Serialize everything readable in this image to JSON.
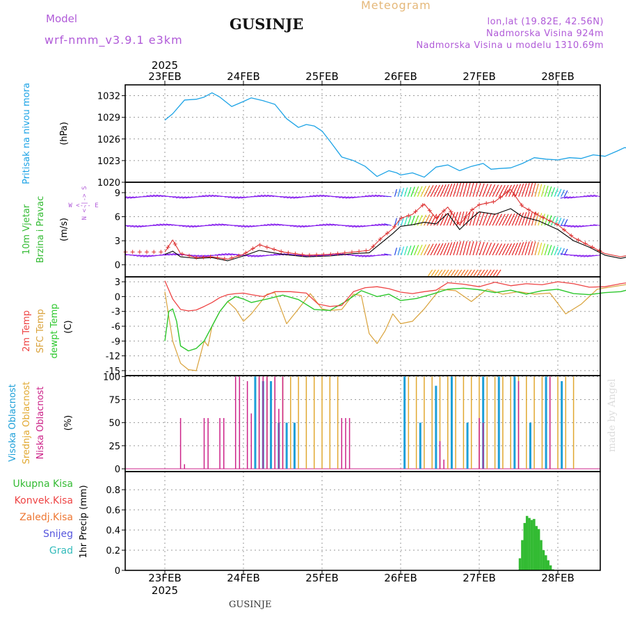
{
  "header": {
    "model_label": "Model",
    "model_name": "wrf-nmm_v3.9.1  e3km",
    "station": "GUSINJE",
    "product": "Meteogram",
    "lonlat": "lon,lat (19.82E, 42.56N)",
    "elevation": "Nadmorska Visina 924m",
    "model_elevation": "Nadmorska Visina u modelu 1310.69m",
    "footer_station": "GUSINJE",
    "credit": "made by Angel"
  },
  "colors": {
    "pressure": "#1ca3e6",
    "t2m": "#ee4444",
    "sfc": "#d9a23a",
    "dew": "#2cc72c",
    "precip": "#33bb33",
    "high_cloud": "#1c9fd8",
    "mid_cloud": "#e1a830",
    "low_cloud": "#cc2288",
    "gust": "#dd3333"
  },
  "chart_data": [
    {
      "type": "line",
      "name": "pressure",
      "ylabel": "Pritisak na nivou mora",
      "unit": "(hPa)",
      "ylim": [
        1020,
        1033.5
      ],
      "yticks": [
        1020,
        1023,
        1026,
        1029,
        1032
      ],
      "series": [
        {
          "name": "MSLP",
          "x": [
            0,
            0.1,
            0.25,
            0.4,
            0.5,
            0.6,
            0.7,
            0.85,
            1.0,
            1.1,
            1.25,
            1.4,
            1.55,
            1.7,
            1.8,
            1.9,
            2.0,
            2.1,
            2.25,
            2.4,
            2.55,
            2.7,
            2.85,
            2.95,
            3.0,
            3.15,
            3.3,
            3.45,
            3.6,
            3.75,
            3.9,
            4.05,
            4.15,
            4.25,
            4.4,
            4.55,
            4.7,
            4.85,
            5.0,
            5.15,
            5.3,
            5.45,
            5.6,
            5.75,
            5.85,
            5.95,
            6.0
          ],
          "values": [
            1028.6,
            1029.5,
            1031.4,
            1031.5,
            1031.8,
            1032.4,
            1031.8,
            1030.5,
            1031.2,
            1031.7,
            1031.3,
            1030.8,
            1028.8,
            1027.6,
            1028.0,
            1027.8,
            1027.1,
            1025.7,
            1023.5,
            1023.0,
            1022.2,
            1020.8,
            1021.6,
            1021.3,
            1021.0,
            1021.3,
            1020.7,
            1022.1,
            1022.4,
            1021.6,
            1022.2,
            1022.6,
            1021.8,
            1021.9,
            1022.0,
            1022.6,
            1023.4,
            1023.2,
            1023.1,
            1023.4,
            1023.3,
            1023.8,
            1023.6,
            1024.3,
            1024.8,
            1024.6,
            1024.4
          ]
        }
      ]
    },
    {
      "type": "line",
      "name": "wind",
      "ylabel": "10m Vjetar",
      "ylabel2": "Brzina i Pravac",
      "unit": "(m/s)",
      "compass": "N <-|-> S, W <--- E",
      "ylim": [
        -1.5,
        10.3
      ],
      "yticks": [
        0,
        3,
        6,
        9
      ],
      "series": [
        {
          "name": "wind speed",
          "x": [
            0,
            0.1,
            0.2,
            0.4,
            0.6,
            0.8,
            1.0,
            1.2,
            1.5,
            1.8,
            2.1,
            2.4,
            2.6,
            2.75,
            2.9,
            3.0,
            3.15,
            3.3,
            3.45,
            3.6,
            3.75,
            3.9,
            4.0,
            4.2,
            4.4,
            4.55,
            4.75,
            5.0,
            5.2,
            5.4,
            5.6,
            5.8,
            6.0
          ],
          "values": [
            1.3,
            1.7,
            1.0,
            0.8,
            0.9,
            0.5,
            1.1,
            1.8,
            1.3,
            1.0,
            1.1,
            1.4,
            1.5,
            2.7,
            3.9,
            4.8,
            5.0,
            5.3,
            5.1,
            6.4,
            4.4,
            5.8,
            6.6,
            6.3,
            7.0,
            6.0,
            5.5,
            4.4,
            3.0,
            2.2,
            1.2,
            0.8,
            1.2
          ]
        },
        {
          "name": "gust",
          "x": [
            0,
            0.1,
            0.2,
            0.4,
            0.6,
            0.8,
            1.0,
            1.2,
            1.5,
            1.8,
            2.1,
            2.4,
            2.6,
            2.75,
            2.9,
            3.0,
            3.15,
            3.3,
            3.45,
            3.6,
            3.75,
            3.9,
            4.0,
            4.2,
            4.4,
            4.55,
            4.75,
            5.0,
            5.2,
            5.4,
            5.6,
            5.8,
            6.0
          ],
          "values": [
            1.6,
            3.1,
            1.4,
            0.9,
            1.0,
            0.7,
            1.3,
            2.5,
            1.6,
            1.2,
            1.3,
            1.6,
            1.8,
            3.3,
            4.5,
            5.8,
            6.3,
            7.6,
            5.8,
            7.2,
            5.0,
            6.8,
            7.5,
            7.9,
            9.4,
            7.3,
            6.2,
            5.0,
            3.4,
            2.4,
            1.4,
            1.0,
            1.4
          ]
        }
      ]
    },
    {
      "type": "line",
      "name": "temperature",
      "ylabel": "2m Temp",
      "ylabel2": "SFC Temp",
      "ylabel3": "dewpt Temp",
      "unit": "(C)",
      "ylim": [
        -16,
        4
      ],
      "yticks": [
        -15,
        -12,
        -9,
        -6,
        -3,
        0,
        3
      ],
      "series": [
        {
          "name": "2m Temp",
          "x": [
            0,
            0.1,
            0.2,
            0.3,
            0.4,
            0.5,
            0.6,
            0.7,
            0.8,
            0.9,
            1.0,
            1.1,
            1.25,
            1.4,
            1.6,
            1.8,
            1.95,
            2.1,
            2.25,
            2.4,
            2.55,
            2.7,
            2.85,
            3.0,
            3.15,
            3.3,
            3.45,
            3.6,
            3.8,
            4.0,
            4.2,
            4.4,
            4.6,
            4.8,
            5.0,
            5.2,
            5.4,
            5.6,
            5.8,
            6.0
          ],
          "values": [
            3.2,
            -0.5,
            -2.6,
            -2.9,
            -2.7,
            -2.0,
            -1.2,
            -0.2,
            0.4,
            0.6,
            0.7,
            0.4,
            0.0,
            1.0,
            1.0,
            0.7,
            -1.5,
            -2.0,
            -1.8,
            1.0,
            1.8,
            2.0,
            1.6,
            0.9,
            0.6,
            1.0,
            1.3,
            2.8,
            2.5,
            2.0,
            2.9,
            2.2,
            2.6,
            2.4,
            3.0,
            2.6,
            1.9,
            2.0,
            2.6,
            3.1
          ]
        },
        {
          "name": "SFC Temp",
          "x": [
            0,
            0.1,
            0.2,
            0.3,
            0.4,
            0.5,
            0.55,
            0.6,
            0.7,
            0.8,
            0.9,
            1.0,
            1.1,
            1.2,
            1.3,
            1.4,
            1.55,
            1.7,
            1.85,
            2.0,
            2.1,
            2.25,
            2.4,
            2.5,
            2.6,
            2.7,
            2.8,
            2.9,
            3.0,
            3.15,
            3.3,
            3.5,
            3.7,
            3.9,
            4.1,
            4.3,
            4.5,
            4.7,
            4.9,
            5.1,
            5.3,
            5.5,
            5.7,
            5.9,
            6.0
          ],
          "values": [
            1.0,
            -9.0,
            -13.5,
            -14.8,
            -15.0,
            -9.0,
            -10.0,
            -6.0,
            -3.0,
            -1.0,
            -2.5,
            -5.0,
            -3.5,
            -1.5,
            0.5,
            0.8,
            -5.5,
            -2.5,
            0.6,
            -2.5,
            -2.8,
            -2.6,
            0.5,
            0.2,
            -7.5,
            -9.5,
            -7.0,
            -3.5,
            -5.5,
            -5.0,
            -2.5,
            1.5,
            1.2,
            -1.0,
            1.5,
            0.5,
            1.0,
            0.5,
            0.7,
            -3.5,
            -1.5,
            1.5,
            2.0,
            2.5,
            3.3
          ]
        },
        {
          "name": "dewpt Temp",
          "x": [
            0,
            0.05,
            0.1,
            0.15,
            0.2,
            0.3,
            0.4,
            0.5,
            0.6,
            0.7,
            0.8,
            0.9,
            1.0,
            1.1,
            1.3,
            1.5,
            1.7,
            1.9,
            2.1,
            2.3,
            2.5,
            2.7,
            2.85,
            3.0,
            3.2,
            3.4,
            3.6,
            3.8,
            4.0,
            4.2,
            4.4,
            4.6,
            4.8,
            5.0,
            5.2,
            5.4,
            5.6,
            5.8,
            6.0
          ],
          "values": [
            -9.0,
            -3.0,
            -2.5,
            -5.0,
            -10.0,
            -11.0,
            -10.5,
            -9.0,
            -6.0,
            -3.0,
            -1.0,
            0.0,
            -0.5,
            -1.2,
            -0.5,
            0.3,
            -0.6,
            -2.6,
            -2.8,
            -1.0,
            1.2,
            0.0,
            0.5,
            -0.8,
            -0.4,
            0.5,
            1.5,
            1.7,
            1.4,
            0.8,
            1.3,
            0.5,
            1.2,
            1.5,
            0.6,
            0.4,
            0.8,
            1.0,
            1.8
          ]
        }
      ]
    },
    {
      "type": "bar",
      "name": "clouds",
      "ylabel": "Visoka Oblacnost",
      "ylabel2": "Srednja Oblacnost",
      "ylabel3": "Niska  Oblacnost",
      "unit": "(%)",
      "ylim": [
        -3,
        101
      ],
      "yticks": [
        0,
        25,
        50,
        75,
        100
      ],
      "series": [
        {
          "name": "Niska Oblacnost",
          "x": [
            0.2,
            0.25,
            0.5,
            0.55,
            0.7,
            0.75,
            0.9,
            0.95,
            1.05,
            1.1,
            1.2,
            1.25,
            1.3,
            1.4,
            1.45,
            1.5,
            2.25,
            2.3,
            2.35,
            3.5,
            3.55,
            4.0,
            4.05,
            4.5,
            4.9
          ],
          "values": [
            55,
            5,
            55,
            55,
            55,
            55,
            100,
            100,
            95,
            60,
            100,
            100,
            100,
            100,
            65,
            100,
            55,
            55,
            55,
            30,
            10,
            55,
            50,
            95,
            100
          ]
        },
        {
          "name": "Srednja Oblacnost",
          "x": [
            1.2,
            1.3,
            1.4,
            1.5,
            1.6,
            1.7,
            1.8,
            1.9,
            2.0,
            2.1,
            2.2,
            3.1,
            3.2,
            3.3,
            3.4,
            3.5,
            3.6,
            3.7,
            3.8,
            3.9,
            4.0,
            4.1,
            4.2,
            4.3,
            4.4,
            4.5,
            4.6,
            4.7,
            4.8,
            4.9,
            5.0,
            5.1,
            5.2
          ],
          "values": [
            100,
            100,
            100,
            100,
            100,
            100,
            100,
            100,
            100,
            100,
            100,
            100,
            100,
            100,
            100,
            100,
            100,
            100,
            100,
            100,
            100,
            100,
            100,
            100,
            100,
            100,
            100,
            100,
            100,
            100,
            100,
            100,
            100
          ]
        },
        {
          "name": "Visoka Oblacnost",
          "x": [
            1.15,
            1.25,
            1.35,
            1.45,
            1.55,
            1.65,
            3.05,
            3.25,
            3.45,
            3.65,
            3.85,
            4.05,
            4.25,
            4.45,
            4.65,
            4.85,
            5.05
          ],
          "values": [
            100,
            95,
            95,
            50,
            50,
            50,
            100,
            50,
            90,
            100,
            50,
            100,
            100,
            100,
            50,
            100,
            95
          ]
        }
      ]
    },
    {
      "type": "bar",
      "name": "precipitation",
      "ylabel": "1hr Precip (mm)",
      "legend": [
        "Ukupna  Kisa",
        "Konvek.Kisa",
        "Zaledj.Kisa",
        "Snijeg",
        "Grad"
      ],
      "ylim": [
        0,
        0.98
      ],
      "yticks": [
        0,
        0.2,
        0.4,
        0.6,
        0.8
      ],
      "series": [
        {
          "name": "Ukupna Kisa",
          "x": [
            4.52,
            4.55,
            4.58,
            4.61,
            4.64,
            4.67,
            4.7,
            4.73,
            4.76,
            4.79,
            4.82,
            4.85,
            4.88,
            4.91,
            4.94
          ],
          "values": [
            0.12,
            0.3,
            0.47,
            0.54,
            0.52,
            0.5,
            0.51,
            0.44,
            0.41,
            0.3,
            0.2,
            0.15,
            0.1,
            0.05,
            0.01
          ]
        }
      ]
    }
  ],
  "axis": {
    "year": "2025",
    "days": [
      "23FEB",
      "24FEB",
      "25FEB",
      "26FEB",
      "27FEB",
      "28FEB"
    ]
  }
}
